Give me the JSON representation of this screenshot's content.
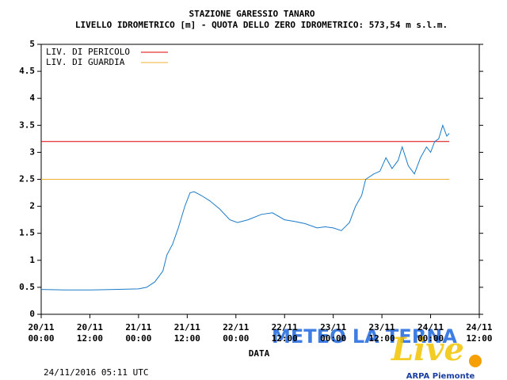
{
  "chart_data": {
    "type": "line",
    "title": "STAZIONE GARESSIO TANARO",
    "subtitle": "LIVELLO IDROMETRICO [m] - QUOTA DELLO ZERO IDROMETRICO: 573,54  m s.l.m.",
    "x_label": "DATA",
    "timestamp": "24/11/2016 05:11 UTC",
    "watermark": "METEO LA TERNA",
    "watermark_sub": "Live",
    "source": "ARPA Piemonte",
    "xlim": [
      0,
      108
    ],
    "ylim": [
      0,
      5
    ],
    "yticks": [
      0,
      0.5,
      1,
      1.5,
      2,
      2.5,
      3,
      3.5,
      4,
      4.5,
      5
    ],
    "xticks": [
      {
        "value": 0,
        "label": "20/11",
        "sublabel": "00:00"
      },
      {
        "value": 12,
        "label": "20/11",
        "sublabel": "12:00"
      },
      {
        "value": 24,
        "label": "21/11",
        "sublabel": "00:00"
      },
      {
        "value": 36,
        "label": "21/11",
        "sublabel": "12:00"
      },
      {
        "value": 48,
        "label": "22/11",
        "sublabel": "00:00"
      },
      {
        "value": 60,
        "label": "22/11",
        "sublabel": "12:00"
      },
      {
        "value": 72,
        "label": "23/11",
        "sublabel": "00:00"
      },
      {
        "value": 84,
        "label": "23/11",
        "sublabel": "12:00"
      },
      {
        "value": 96,
        "label": "24/11",
        "sublabel": "00:00"
      },
      {
        "value": 108,
        "label": "24/11",
        "sublabel": "12:00"
      }
    ],
    "thresholds": [
      {
        "name": "LIV. DI PERICOLO",
        "value": 3.2,
        "color": "#e00000",
        "end": 100.6
      },
      {
        "name": "LIV. DI GUARDIA",
        "value": 2.5,
        "color": "#f0b030",
        "end": 100.6
      }
    ],
    "series": [
      {
        "name": "Livello",
        "color": "#1a7ac8",
        "x": [
          0,
          6,
          12,
          18,
          24,
          26,
          28,
          30,
          31,
          32.4,
          33.8,
          35.4,
          36.7,
          37.7,
          39.5,
          41.6,
          44,
          46.5,
          48.4,
          51,
          54.3,
          57,
          60,
          62.5,
          65,
          68,
          70,
          72,
          74,
          76,
          77.5,
          79,
          80,
          82,
          83.5,
          85,
          86.5,
          88,
          89,
          90.5,
          92,
          93.5,
          95,
          96,
          97,
          98,
          99,
          100,
          100.6
        ],
        "values": [
          0.46,
          0.45,
          0.45,
          0.46,
          0.47,
          0.5,
          0.6,
          0.8,
          1.1,
          1.3,
          1.6,
          2.0,
          2.25,
          2.27,
          2.2,
          2.1,
          1.95,
          1.75,
          1.7,
          1.75,
          1.85,
          1.88,
          1.75,
          1.72,
          1.68,
          1.6,
          1.62,
          1.6,
          1.55,
          1.7,
          2.0,
          2.2,
          2.5,
          2.6,
          2.65,
          2.9,
          2.7,
          2.85,
          3.1,
          2.75,
          2.6,
          2.9,
          3.1,
          3.0,
          3.2,
          3.25,
          3.5,
          3.3,
          3.35
        ]
      }
    ]
  }
}
